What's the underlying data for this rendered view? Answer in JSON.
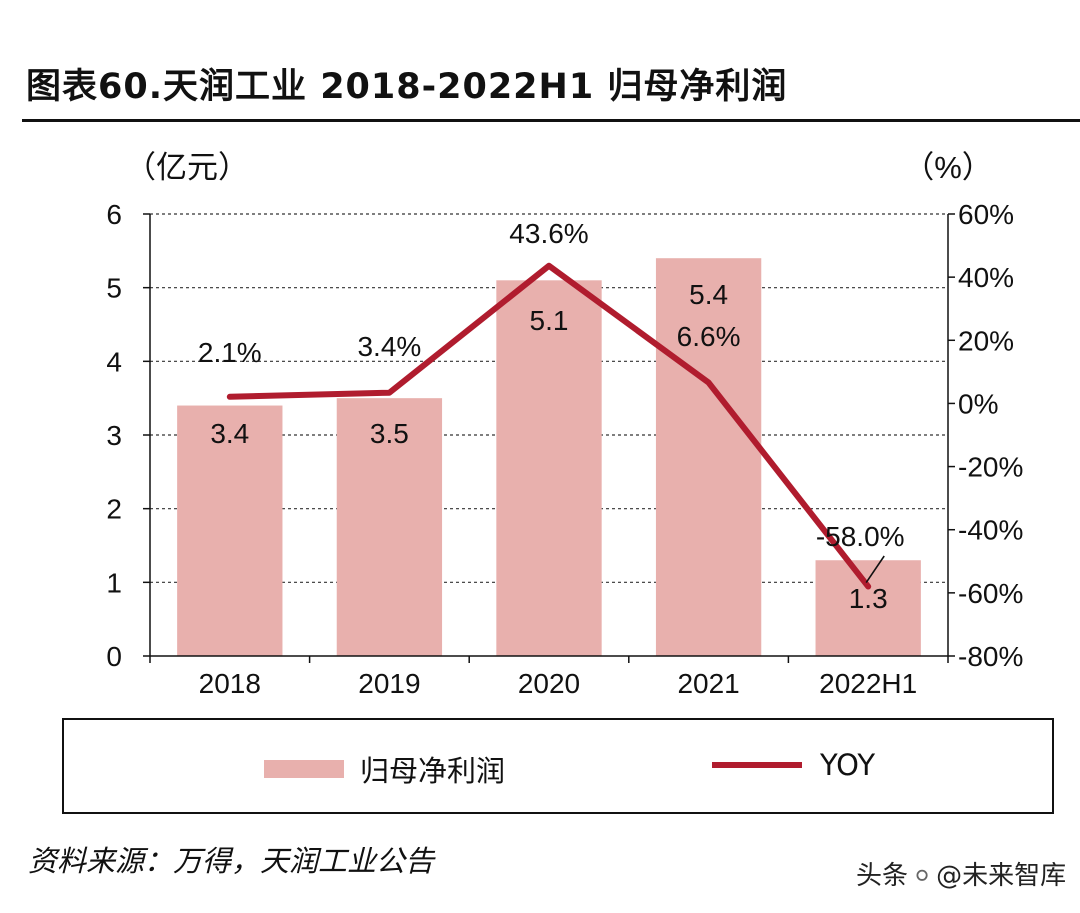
{
  "title": "图表60.天润工业 2018-2022H1 归母净利润",
  "source": "资料来源：万得，天润工业公告",
  "watermark": {
    "prefix": "头条",
    "handle": "@未来智库"
  },
  "colors": {
    "bar": "#e8b0ad",
    "line": "#b01c2e",
    "grid": "#333333",
    "axis": "#111111"
  },
  "chart_data": {
    "type": "bar+line",
    "categories": [
      "2018",
      "2019",
      "2020",
      "2021",
      "2022H1"
    ],
    "series": [
      {
        "name": "归母净利润",
        "type": "bar",
        "axis": "left",
        "values": [
          3.4,
          3.5,
          5.1,
          5.4,
          1.3
        ],
        "labels": [
          "3.4",
          "3.5",
          "5.1",
          "5.4",
          "1.3"
        ]
      },
      {
        "name": "YOY",
        "type": "line",
        "axis": "right",
        "values": [
          2.1,
          3.4,
          43.6,
          6.6,
          -58.0
        ],
        "labels": [
          "2.1%",
          "3.4%",
          "43.6%",
          "6.6%",
          "-58.0%"
        ]
      }
    ],
    "left_axis": {
      "unit_label": "（亿元）",
      "min": 0,
      "max": 6,
      "ticks": [
        "0",
        "1",
        "2",
        "3",
        "4",
        "5",
        "6"
      ]
    },
    "right_axis": {
      "unit_label": "（%）",
      "min": -80,
      "max": 60,
      "ticks": [
        "-80%",
        "-60%",
        "-40%",
        "-20%",
        "0%",
        "20%",
        "40%",
        "60%"
      ]
    },
    "grid": "dashed-horizontal",
    "legend": {
      "position": "bottom",
      "items": [
        "归母净利润",
        "YOY"
      ]
    }
  }
}
